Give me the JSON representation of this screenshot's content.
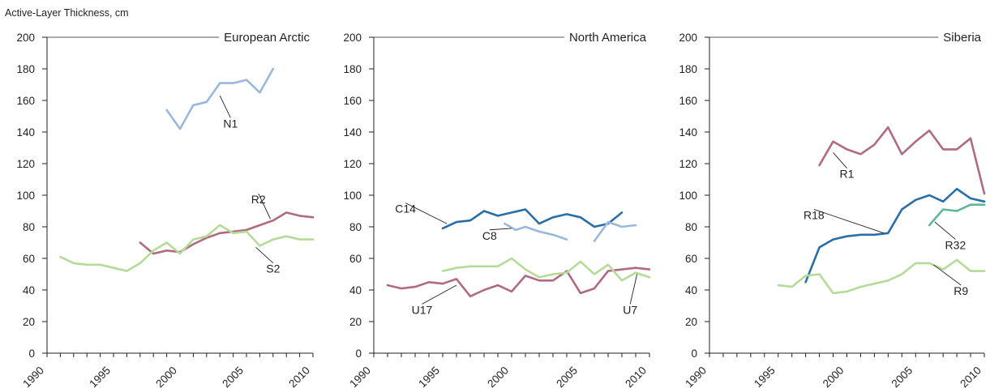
{
  "figure": {
    "ylabel": "Active-Layer Thickness, cm"
  },
  "colors": {
    "light_blue": "#9ab8dd",
    "dark_blue": "#2a6ea8",
    "rose": "#b06a82",
    "light_green": "#b4db98",
    "teal_green": "#5fb79a",
    "axis": "#231f20"
  },
  "chart_data": [
    {
      "type": "line",
      "title": "European Arctic",
      "xlabel": "",
      "ylabel": "Active-Layer Thickness, cm",
      "xlim": [
        1990,
        2010
      ],
      "ylim": [
        0,
        200
      ],
      "x_ticks": [
        1990,
        1995,
        2000,
        2005,
        2010
      ],
      "y_ticks": [
        0,
        20,
        40,
        60,
        80,
        100,
        120,
        140,
        160,
        180,
        200
      ],
      "grid": false,
      "series": [
        {
          "name": "N1",
          "color": "#9ab8dd",
          "x": [
            1999,
            2000,
            2001,
            2002,
            2003,
            2004,
            2005,
            2006,
            2007
          ],
          "y": [
            154,
            142,
            157,
            159,
            171,
            171,
            173,
            165,
            180
          ]
        },
        {
          "name": "R2",
          "color": "#b06a82",
          "x": [
            1997,
            1998,
            1999,
            2000,
            2001,
            2002,
            2003,
            2004,
            2005,
            2006,
            2007,
            2008,
            2009,
            2010
          ],
          "y": [
            70,
            63,
            65,
            64,
            69,
            73,
            76,
            77,
            78,
            81,
            84,
            89,
            87,
            86
          ]
        },
        {
          "name": "S2",
          "color": "#b4db98",
          "x": [
            1991,
            1992,
            1993,
            1994,
            1995,
            1996,
            1997,
            1998,
            1999,
            2000,
            2001,
            2002,
            2003,
            2004,
            2005,
            2006,
            2007,
            2008,
            2009,
            2010
          ],
          "y": [
            61,
            57,
            56,
            56,
            54,
            52,
            57,
            65,
            70,
            63,
            72,
            74,
            81,
            76,
            77,
            68,
            72,
            74,
            72,
            72
          ]
        }
      ],
      "annotations": [
        {
          "text": "N1",
          "x": 2003.8,
          "y": 146,
          "to_x": 2003.0,
          "to_y": 163
        },
        {
          "text": "R2",
          "x": 2005.9,
          "y": 98,
          "to_x": 2006.8,
          "to_y": 85
        },
        {
          "text": "S2",
          "x": 2007.0,
          "y": 54,
          "to_x": 2005.7,
          "to_y": 67
        }
      ]
    },
    {
      "type": "line",
      "title": "North America",
      "xlabel": "",
      "ylabel": "",
      "xlim": [
        1990,
        2010
      ],
      "ylim": [
        0,
        200
      ],
      "x_ticks": [
        1990,
        1995,
        2000,
        2005,
        2010
      ],
      "y_ticks": [
        0,
        20,
        40,
        60,
        80,
        100,
        120,
        140,
        160,
        180,
        200
      ],
      "grid": false,
      "series": [
        {
          "name": "C14",
          "color": "#2a6ea8",
          "x": [
            1995,
            1996,
            1997,
            1998,
            1999,
            2000,
            2001,
            2002,
            2003,
            2004,
            2005,
            2006,
            2007,
            2008
          ],
          "y": [
            79,
            83,
            84,
            90,
            87,
            89,
            91,
            82,
            86,
            88,
            86,
            80,
            82,
            89
          ]
        },
        {
          "name": "C8",
          "color": "#9ab8dd",
          "x": [
            1999.5,
            2000.3,
            2001,
            2002,
            2003,
            2004
          ],
          "y": [
            82,
            78,
            80,
            77,
            75,
            72
          ]
        },
        {
          "name": "C8",
          "color": "#9ab8dd",
          "x": [
            2006,
            2007,
            2008,
            2009
          ],
          "y": [
            71,
            83,
            80,
            81
          ]
        },
        {
          "name": "U17",
          "color": "#b06a82",
          "x": [
            1991,
            1992,
            1993,
            1994,
            1995,
            1996,
            1997,
            1998,
            1999,
            2000,
            2001,
            2002,
            2003,
            2004,
            2005,
            2006,
            2007,
            2008,
            2009,
            2010
          ],
          "y": [
            43,
            41,
            42,
            45,
            44,
            47,
            36,
            40,
            43,
            39,
            49,
            46,
            46,
            52,
            38,
            41,
            52,
            53,
            54,
            53
          ]
        },
        {
          "name": "U7",
          "color": "#b4db98",
          "x": [
            1995,
            1996,
            1997,
            1998,
            1999,
            2000,
            2001,
            2002,
            2003,
            2004,
            2005,
            2006,
            2007,
            2008,
            2009,
            2010
          ],
          "y": [
            52,
            54,
            55,
            55,
            55,
            60,
            53,
            48,
            50,
            51,
            58,
            50,
            56,
            46,
            51,
            48
          ]
        }
      ],
      "annotations": [
        {
          "text": "C14",
          "x": 1992.3,
          "y": 92,
          "to_x": 1995.3,
          "to_y": 82
        },
        {
          "text": "C8",
          "x": 1998.4,
          "y": 75,
          "to_x": 2000.0,
          "to_y": 79
        },
        {
          "text": "U17",
          "x": 1993.5,
          "y": 28,
          "to_x": 1996.0,
          "to_y": 43
        },
        {
          "text": "U7",
          "x": 2008.6,
          "y": 28,
          "to_x": 2009.1,
          "to_y": 50
        }
      ]
    },
    {
      "type": "line",
      "title": "Siberia",
      "xlabel": "",
      "ylabel": "",
      "xlim": [
        1990,
        2010
      ],
      "ylim": [
        0,
        200
      ],
      "x_ticks": [
        1990,
        1995,
        2000,
        2005,
        2010
      ],
      "y_ticks": [
        0,
        20,
        40,
        60,
        80,
        100,
        120,
        140,
        160,
        180,
        200
      ],
      "grid": false,
      "series": [
        {
          "name": "R1",
          "color": "#b06a82",
          "x": [
            1998,
            1999,
            2000,
            2001,
            2002,
            2003,
            2004,
            2005,
            2006,
            2007,
            2008,
            2009,
            2010
          ],
          "y": [
            119,
            134,
            129,
            126,
            132,
            143,
            126,
            134,
            141,
            129,
            129,
            136,
            101
          ]
        },
        {
          "name": "R18",
          "color": "#2a6ea8",
          "x": [
            1997,
            1998,
            1999,
            2000,
            2001,
            2002,
            2003,
            2004,
            2005,
            2006,
            2007,
            2008,
            2009,
            2010
          ],
          "y": [
            45,
            67,
            72,
            74,
            75,
            75,
            76,
            91,
            97,
            100,
            96,
            104,
            98,
            96
          ]
        },
        {
          "name": "R32",
          "color": "#5fb79a",
          "x": [
            2006,
            2007,
            2008,
            2009,
            2010
          ],
          "y": [
            81,
            91,
            90,
            94,
            94
          ]
        },
        {
          "name": "R9",
          "color": "#b4db98",
          "x": [
            1995,
            1996,
            1997,
            1998,
            1999,
            2000,
            2001,
            2002,
            2003,
            2004,
            2005,
            2006,
            2007,
            2008,
            2009,
            2010
          ],
          "y": [
            43,
            42,
            49,
            50,
            38,
            39,
            42,
            44,
            46,
            50,
            57,
            57,
            53,
            59,
            52,
            52
          ]
        }
      ],
      "annotations": [
        {
          "text": "R1",
          "x": 2000.0,
          "y": 114,
          "to_x": 1999.0,
          "to_y": 127
        },
        {
          "text": "R18",
          "x": 1997.6,
          "y": 88,
          "to_x": 2002.7,
          "to_y": 76
        },
        {
          "text": "R32",
          "x": 2007.9,
          "y": 69,
          "to_x": 2006.4,
          "to_y": 83
        },
        {
          "text": "R9",
          "x": 2008.3,
          "y": 40,
          "to_x": 2006.3,
          "to_y": 56
        }
      ]
    }
  ]
}
